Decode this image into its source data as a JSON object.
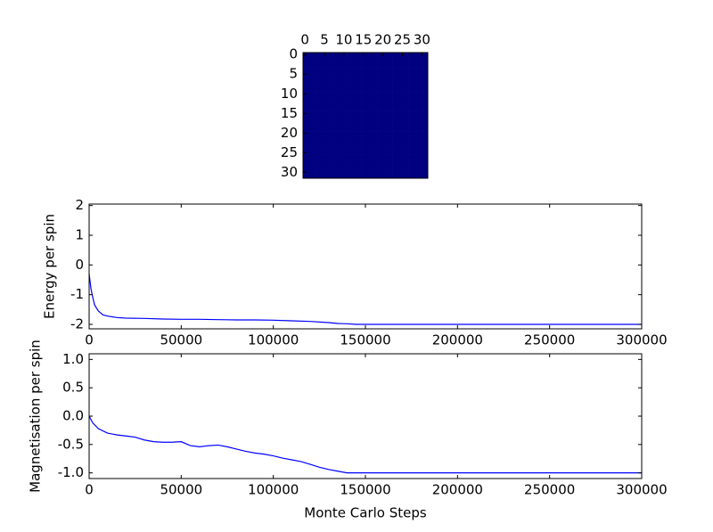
{
  "chart_data": [
    {
      "type": "image",
      "colormap": "jet",
      "xlim": [
        -0.5,
        31.5
      ],
      "ylim": [
        31.5,
        -0.5
      ],
      "xticks": [
        0,
        5,
        10,
        15,
        20,
        25,
        30
      ],
      "yticks": [
        0,
        5,
        10,
        15,
        20,
        25,
        30
      ],
      "values": [
        [
          -1,
          -1,
          -1,
          -1,
          -1,
          -1,
          -1,
          -1,
          -1,
          -1,
          -1,
          -1,
          -1,
          -1,
          -1,
          -1,
          -1,
          -1,
          -1,
          -1,
          -1,
          -1,
          -1,
          -1,
          -1,
          -1,
          -1,
          -1,
          -1,
          -1,
          -1,
          -1
        ],
        [
          -1,
          -1,
          -1,
          -1,
          -1,
          -1,
          -1,
          -1,
          -1,
          -1,
          -1,
          -1,
          -1,
          -1,
          -1,
          -1,
          -1,
          -1,
          -1,
          -1,
          -1,
          -1,
          -1,
          -1,
          -1,
          -1,
          -1,
          -1,
          -1,
          -1,
          -1,
          -1
        ],
        [
          -1,
          -1,
          -1,
          -1,
          -1,
          -1,
          -1,
          -1,
          -1,
          -1,
          -1,
          -1,
          -1,
          -1,
          -1,
          -1,
          -1,
          -1,
          -1,
          -1,
          -1,
          -1,
          -1,
          -1,
          -1,
          -1,
          -1,
          -1,
          -1,
          -1,
          -1,
          -1
        ],
        [
          -1,
          -1,
          -1,
          -1,
          -1,
          -1,
          -1,
          -1,
          -1,
          -1,
          -1,
          -1,
          -1,
          -1,
          -1,
          -1,
          -1,
          -1,
          -1,
          -1,
          -1,
          -1,
          -1,
          -1,
          -1,
          -1,
          -1,
          -1,
          -1,
          -1,
          -1,
          -1
        ],
        [
          -1,
          -1,
          -1,
          -1,
          -1,
          -1,
          -1,
          -1,
          -1,
          -1,
          -1,
          -1,
          -1,
          -1,
          -1,
          -1,
          -1,
          -1,
          -1,
          -1,
          -1,
          -1,
          -1,
          -1,
          -1,
          -1,
          -1,
          -1,
          -1,
          -1,
          -1,
          -1
        ],
        [
          -1,
          -1,
          -1,
          -1,
          -1,
          -1,
          -1,
          -1,
          -1,
          -1,
          -1,
          -1,
          -1,
          -1,
          -1,
          -1,
          -1,
          -1,
          -1,
          -1,
          -1,
          -1,
          -1,
          -1,
          -1,
          -1,
          -1,
          -1,
          -1,
          -1,
          -1,
          -1
        ],
        [
          -1,
          -1,
          -1,
          -1,
          -1,
          -1,
          -1,
          -1,
          -1,
          -1,
          -1,
          -1,
          -1,
          -1,
          -1,
          -1,
          -1,
          -1,
          -1,
          -1,
          -1,
          -1,
          -1,
          -1,
          -1,
          -1,
          -1,
          -1,
          -1,
          -1,
          -1,
          -1
        ],
        [
          -1,
          -1,
          -1,
          -1,
          -1,
          -1,
          -1,
          -1,
          -1,
          -1,
          -1,
          -1,
          -1,
          -1,
          -1,
          -1,
          -1,
          -1,
          -1,
          -1,
          -1,
          -1,
          -1,
          -1,
          -1,
          -1,
          -1,
          -1,
          -1,
          -1,
          -1,
          -1
        ],
        [
          -1,
          -1,
          -1,
          -1,
          -1,
          -1,
          -1,
          -1,
          -1,
          -1,
          -1,
          -1,
          -1,
          -1,
          -1,
          -1,
          -1,
          -1,
          -1,
          -1,
          -1,
          -1,
          -1,
          -1,
          -1,
          -1,
          -1,
          -1,
          -1,
          -1,
          -1,
          -1
        ],
        [
          -1,
          -1,
          -1,
          -1,
          -1,
          -1,
          -1,
          -1,
          -1,
          -1,
          -1,
          -1,
          -1,
          -1,
          -1,
          -1,
          -1,
          -1,
          -1,
          -1,
          -1,
          -1,
          -1,
          -1,
          -1,
          -1,
          -1,
          -1,
          -1,
          -1,
          -1,
          -1
        ],
        [
          -1,
          -1,
          -1,
          -1,
          -1,
          -1,
          -1,
          -1,
          -1,
          -1,
          -1,
          -1,
          -1,
          -1,
          -1,
          -1,
          -1,
          -1,
          -1,
          -1,
          -1,
          -1,
          -1,
          -1,
          -1,
          -1,
          -1,
          -1,
          -1,
          -1,
          -1,
          -1
        ],
        [
          -1,
          -1,
          -1,
          -1,
          -1,
          -1,
          -1,
          -1,
          -1,
          -1,
          -1,
          -1,
          -1,
          -1,
          -1,
          -1,
          -1,
          -1,
          -1,
          -1,
          -1,
          -1,
          -1,
          -1,
          -1,
          -1,
          -1,
          -1,
          -1,
          -1,
          -1,
          -1
        ],
        [
          -1,
          -1,
          -1,
          -1,
          -1,
          -1,
          -1,
          -1,
          -1,
          -1,
          -1,
          -1,
          -1,
          -1,
          -1,
          -1,
          -1,
          -1,
          -1,
          -1,
          -1,
          -1,
          -1,
          -1,
          -1,
          -1,
          -1,
          -1,
          -1,
          -1,
          -1,
          -1
        ],
        [
          -1,
          -1,
          -1,
          -1,
          -1,
          -1,
          -1,
          -1,
          -1,
          -1,
          -1,
          -1,
          -1,
          -1,
          -1,
          -1,
          -1,
          -1,
          -1,
          -1,
          -1,
          -1,
          -1,
          -1,
          -1,
          -1,
          -1,
          -1,
          -1,
          -1,
          -1,
          -1
        ],
        [
          -1,
          -1,
          -1,
          -1,
          -1,
          -1,
          -1,
          -1,
          -1,
          -1,
          -1,
          -1,
          -1,
          -1,
          -1,
          -1,
          -1,
          -1,
          -1,
          -1,
          -1,
          -1,
          -1,
          -1,
          -1,
          -1,
          -1,
          -1,
          -1,
          -1,
          -1,
          -1
        ],
        [
          -1,
          -1,
          -1,
          -1,
          -1,
          -1,
          -1,
          -1,
          -1,
          -1,
          -1,
          -1,
          -1,
          -1,
          -1,
          -1,
          -1,
          -1,
          -1,
          -1,
          -1,
          -1,
          -1,
          -1,
          -1,
          -1,
          -1,
          -1,
          -1,
          -1,
          -1,
          -1
        ],
        [
          -1,
          -1,
          -1,
          -1,
          -1,
          -1,
          -1,
          -1,
          -1,
          -1,
          -1,
          -1,
          -1,
          -1,
          -1,
          -1,
          -1,
          -1,
          -1,
          -1,
          -1,
          -1,
          -1,
          -1,
          -1,
          -1,
          -1,
          -1,
          -1,
          -1,
          -1,
          -1
        ],
        [
          -1,
          -1,
          -1,
          -1,
          -1,
          -1,
          -1,
          -1,
          -1,
          -1,
          -1,
          -1,
          -1,
          -1,
          -1,
          -1,
          -1,
          -1,
          -1,
          -1,
          -1,
          -1,
          -1,
          -1,
          -1,
          -1,
          -1,
          -1,
          -1,
          -1,
          -1,
          -1
        ],
        [
          -1,
          -1,
          -1,
          -1,
          -1,
          -1,
          -1,
          -1,
          -1,
          -1,
          -1,
          -1,
          -1,
          -1,
          -1,
          -1,
          -1,
          -1,
          -1,
          -1,
          -1,
          -1,
          -1,
          -1,
          -1,
          -1,
          -1,
          -1,
          -1,
          -1,
          -1,
          -1
        ],
        [
          -1,
          -1,
          -1,
          -1,
          -1,
          -1,
          -1,
          -1,
          -1,
          -1,
          -1,
          -1,
          -1,
          -1,
          -1,
          -1,
          -1,
          -1,
          -1,
          -1,
          -1,
          -1,
          -1,
          -1,
          -1,
          -1,
          -1,
          -1,
          -1,
          -1,
          -1,
          -1
        ],
        [
          -1,
          -1,
          -1,
          -1,
          -1,
          -1,
          -1,
          -1,
          -1,
          -1,
          -1,
          -1,
          -1,
          -1,
          -1,
          -1,
          -1,
          -1,
          -1,
          -1,
          -1,
          -1,
          -1,
          -1,
          -1,
          -1,
          -1,
          -1,
          -1,
          -1,
          -1,
          -1
        ],
        [
          -1,
          -1,
          -1,
          -1,
          -1,
          -1,
          -1,
          -1,
          -1,
          -1,
          -1,
          -1,
          -1,
          -1,
          -1,
          -1,
          -1,
          -1,
          -1,
          -1,
          -1,
          -1,
          -1,
          -1,
          -1,
          -1,
          -1,
          -1,
          -1,
          -1,
          -1,
          -1
        ],
        [
          -1,
          -1,
          -1,
          -1,
          -1,
          -1,
          -1,
          -1,
          -1,
          -1,
          -1,
          -1,
          -1,
          -1,
          -1,
          -1,
          -1,
          -1,
          -1,
          -1,
          -1,
          -1,
          -1,
          -1,
          -1,
          -1,
          -1,
          -1,
          -1,
          -1,
          -1,
          -1
        ],
        [
          -1,
          -1,
          -1,
          -1,
          -1,
          -1,
          -1,
          -1,
          -1,
          -1,
          -1,
          -1,
          -1,
          -1,
          -1,
          -1,
          -1,
          -1,
          -1,
          -1,
          -1,
          -1,
          -1,
          -1,
          -1,
          -1,
          -1,
          -1,
          -1,
          -1,
          -1,
          -1
        ],
        [
          -1,
          -1,
          -1,
          -1,
          -1,
          -1,
          -1,
          -1,
          -1,
          -1,
          -1,
          -1,
          -1,
          -1,
          -1,
          -1,
          -1,
          -1,
          -1,
          -1,
          -1,
          -1,
          -1,
          -1,
          -1,
          -1,
          -1,
          -1,
          -1,
          -1,
          -1,
          -1
        ],
        [
          -1,
          -1,
          -1,
          -1,
          -1,
          -1,
          -1,
          -1,
          -1,
          -1,
          -1,
          -1,
          -1,
          -1,
          -1,
          -1,
          -1,
          -1,
          -1,
          -1,
          -1,
          -1,
          -1,
          -1,
          -1,
          -1,
          -1,
          -1,
          -1,
          -1,
          -1,
          -1
        ],
        [
          -1,
          -1,
          -1,
          -1,
          -1,
          -1,
          -1,
          -1,
          -1,
          -1,
          -1,
          -1,
          -1,
          -1,
          -1,
          -1,
          -1,
          -1,
          -1,
          -1,
          -1,
          -1,
          -1,
          -1,
          -1,
          -1,
          -1,
          -1,
          -1,
          -1,
          -1,
          -1
        ],
        [
          -1,
          -1,
          -1,
          -1,
          -1,
          -1,
          -1,
          -1,
          -1,
          -1,
          -1,
          -1,
          -1,
          -1,
          -1,
          -1,
          -1,
          -1,
          -1,
          -1,
          -1,
          -1,
          -1,
          -1,
          -1,
          -1,
          -1,
          -1,
          -1,
          -1,
          -1,
          -1
        ],
        [
          -1,
          -1,
          -1,
          -1,
          -1,
          -1,
          -1,
          -1,
          -1,
          -1,
          -1,
          -1,
          -1,
          -1,
          -1,
          -1,
          -1,
          -1,
          -1,
          -1,
          -1,
          -1,
          -1,
          -1,
          -1,
          -1,
          -1,
          -1,
          -1,
          -1,
          -1,
          -1
        ],
        [
          -1,
          -1,
          -1,
          -1,
          -1,
          -1,
          -1,
          -1,
          -1,
          -1,
          -1,
          -1,
          -1,
          -1,
          -1,
          -1,
          -1,
          -1,
          -1,
          -1,
          -1,
          -1,
          -1,
          -1,
          -1,
          -1,
          -1,
          -1,
          -1,
          -1,
          -1,
          -1
        ],
        [
          -1,
          -1,
          -1,
          -1,
          -1,
          -1,
          -1,
          -1,
          -1,
          -1,
          -1,
          -1,
          -1,
          -1,
          -1,
          -1,
          -1,
          -1,
          -1,
          -1,
          -1,
          -1,
          -1,
          -1,
          -1,
          -1,
          -1,
          -1,
          -1,
          -1,
          -1,
          -1
        ],
        [
          -1,
          -1,
          -1,
          -1,
          -1,
          -1,
          -1,
          -1,
          -1,
          -1,
          -1,
          -1,
          -1,
          -1,
          -1,
          -1,
          -1,
          -1,
          -1,
          -1,
          -1,
          -1,
          -1,
          -1,
          -1,
          -1,
          -1,
          -1,
          -1,
          -1,
          -1,
          -1
        ]
      ]
    },
    {
      "type": "line",
      "ylabel": "Energy per spin",
      "color": "#0000ff",
      "xlim": [
        0,
        300000
      ],
      "xticks": [
        0,
        50000,
        100000,
        150000,
        200000,
        250000,
        300000
      ],
      "ylim": [
        -2.15,
        2.05
      ],
      "yticks": [
        -2,
        -1,
        0,
        1,
        2
      ],
      "x": [
        0,
        1000,
        2000,
        3000,
        5000,
        7500,
        10000,
        15000,
        20000,
        30000,
        40000,
        50000,
        60000,
        70000,
        80000,
        90000,
        100000,
        110000,
        120000,
        130000,
        135000,
        140000,
        145000,
        150000,
        175000,
        200000,
        225000,
        250000,
        275000,
        300000
      ],
      "values": [
        -0.3,
        -0.8,
        -1.1,
        -1.35,
        -1.55,
        -1.68,
        -1.72,
        -1.77,
        -1.79,
        -1.8,
        -1.82,
        -1.83,
        -1.83,
        -1.84,
        -1.85,
        -1.85,
        -1.86,
        -1.88,
        -1.9,
        -1.94,
        -1.97,
        -1.98,
        -2.0,
        -2.0,
        -2.0,
        -2.0,
        -2.0,
        -2.0,
        -2.0,
        -2.0
      ]
    },
    {
      "type": "line",
      "ylabel": "Magnetisation per spin",
      "xlabel": "Monte Carlo Steps",
      "color": "#0000ff",
      "xlim": [
        0,
        300000
      ],
      "xticks": [
        0,
        50000,
        100000,
        150000,
        200000,
        250000,
        300000
      ],
      "ylim": [
        -1.1,
        1.1
      ],
      "yticks": [
        {
          "value": -1,
          "label": "-1.0"
        },
        {
          "value": -0.5,
          "label": "-0.5"
        },
        {
          "value": 0,
          "label": "0.0"
        },
        {
          "value": 0.5,
          "label": "0.5"
        },
        {
          "value": 1,
          "label": "1.0"
        }
      ],
      "x": [
        0,
        2000,
        5000,
        10000,
        15000,
        20000,
        25000,
        30000,
        35000,
        40000,
        45000,
        50000,
        55000,
        60000,
        65000,
        70000,
        75000,
        80000,
        85000,
        90000,
        95000,
        100000,
        105000,
        110000,
        115000,
        120000,
        125000,
        130000,
        135000,
        140000,
        150000,
        200000,
        250000,
        300000
      ],
      "values": [
        0.0,
        -0.12,
        -0.22,
        -0.3,
        -0.33,
        -0.35,
        -0.37,
        -0.42,
        -0.45,
        -0.46,
        -0.46,
        -0.45,
        -0.52,
        -0.54,
        -0.52,
        -0.51,
        -0.54,
        -0.58,
        -0.62,
        -0.65,
        -0.67,
        -0.7,
        -0.74,
        -0.77,
        -0.8,
        -0.85,
        -0.9,
        -0.94,
        -0.97,
        -1.0,
        -1.0,
        -1.0,
        -1.0,
        -1.0
      ]
    }
  ]
}
